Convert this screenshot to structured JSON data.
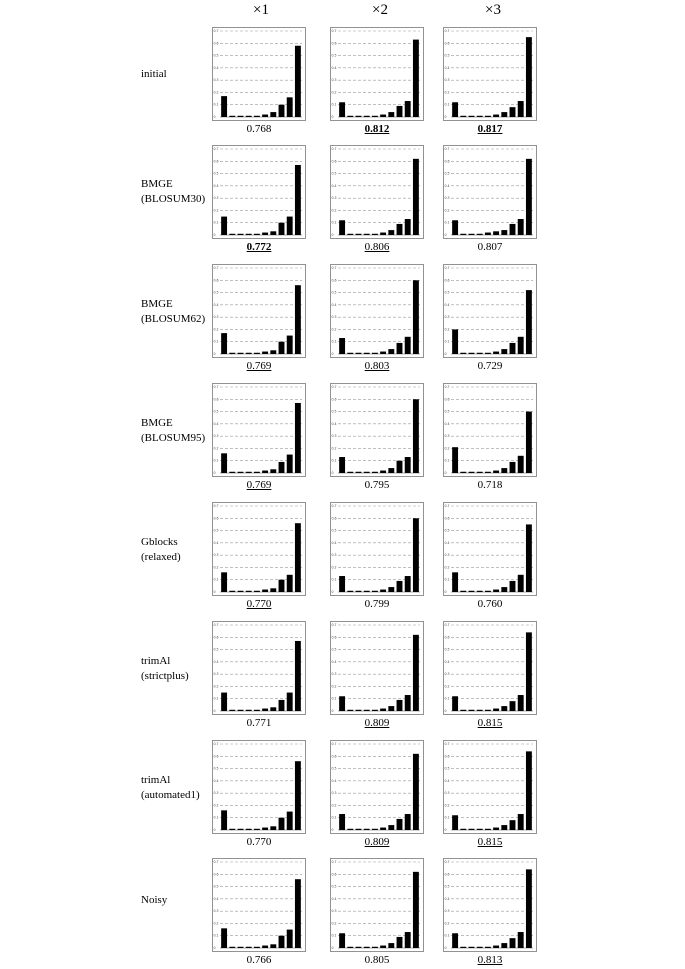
{
  "column_headers": [
    "×1",
    "×2",
    "×3"
  ],
  "row_labels": [
    "initial",
    "BMGE\n(BLOSUM30)",
    "BMGE\n(BLOSUM62)",
    "BMGE\n(BLOSUM95)",
    "Gblocks\n(relaxed)",
    "trimAl\n(strictplus)",
    "trimAl\n(automated1)",
    "Noisy"
  ],
  "axis": {
    "ylim": [
      0,
      0.7
    ],
    "ytick_labels": [
      "0",
      "0.1",
      "0.2",
      "0.3",
      "0.4",
      "0.5",
      "0.6",
      "0.7"
    ],
    "grid": "dashed horizontal"
  },
  "chart_data": [
    {
      "type": "bar",
      "row": "initial",
      "column": "×1",
      "values": [
        0.17,
        0.01,
        0.01,
        0.01,
        0.01,
        0.02,
        0.04,
        0.1,
        0.16,
        0.58
      ],
      "score": "0.768",
      "underline": false,
      "bold": false
    },
    {
      "type": "bar",
      "row": "initial",
      "column": "×2",
      "values": [
        0.12,
        0.01,
        0.01,
        0.01,
        0.01,
        0.02,
        0.04,
        0.09,
        0.13,
        0.63
      ],
      "score": "0.812",
      "underline": true,
      "bold": true
    },
    {
      "type": "bar",
      "row": "initial",
      "column": "×3",
      "values": [
        0.12,
        0.01,
        0.01,
        0.01,
        0.01,
        0.02,
        0.04,
        0.08,
        0.13,
        0.65
      ],
      "score": "0.817",
      "underline": true,
      "bold": true
    },
    {
      "type": "bar",
      "row": "BMGE (BLOSUM30)",
      "column": "×1",
      "values": [
        0.15,
        0.01,
        0.01,
        0.01,
        0.01,
        0.02,
        0.03,
        0.1,
        0.15,
        0.57
      ],
      "score": "0.772",
      "underline": true,
      "bold": true
    },
    {
      "type": "bar",
      "row": "BMGE (BLOSUM30)",
      "column": "×2",
      "values": [
        0.12,
        0.01,
        0.01,
        0.01,
        0.01,
        0.02,
        0.04,
        0.09,
        0.13,
        0.62
      ],
      "score": "0.806",
      "underline": true,
      "bold": false
    },
    {
      "type": "bar",
      "row": "BMGE (BLOSUM30)",
      "column": "×3",
      "values": [
        0.12,
        0.01,
        0.01,
        0.01,
        0.02,
        0.03,
        0.04,
        0.09,
        0.13,
        0.62
      ],
      "score": "0.807",
      "underline": false,
      "bold": false
    },
    {
      "type": "bar",
      "row": "BMGE (BLOSUM62)",
      "column": "×1",
      "values": [
        0.17,
        0.01,
        0.01,
        0.01,
        0.01,
        0.02,
        0.03,
        0.1,
        0.15,
        0.56
      ],
      "score": "0.769",
      "underline": true,
      "bold": false
    },
    {
      "type": "bar",
      "row": "BMGE (BLOSUM62)",
      "column": "×2",
      "values": [
        0.13,
        0.01,
        0.01,
        0.01,
        0.01,
        0.02,
        0.04,
        0.09,
        0.14,
        0.6
      ],
      "score": "0.803",
      "underline": true,
      "bold": false
    },
    {
      "type": "bar",
      "row": "BMGE (BLOSUM62)",
      "column": "×3",
      "values": [
        0.2,
        0.01,
        0.01,
        0.01,
        0.01,
        0.02,
        0.04,
        0.09,
        0.14,
        0.52
      ],
      "score": "0.729",
      "underline": false,
      "bold": false
    },
    {
      "type": "bar",
      "row": "BMGE (BLOSUM95)",
      "column": "×1",
      "values": [
        0.16,
        0.01,
        0.01,
        0.01,
        0.01,
        0.02,
        0.03,
        0.09,
        0.15,
        0.57
      ],
      "score": "0.769",
      "underline": true,
      "bold": false
    },
    {
      "type": "bar",
      "row": "BMGE (BLOSUM95)",
      "column": "×2",
      "values": [
        0.13,
        0.01,
        0.01,
        0.01,
        0.01,
        0.02,
        0.04,
        0.1,
        0.13,
        0.6
      ],
      "score": "0.795",
      "underline": false,
      "bold": false
    },
    {
      "type": "bar",
      "row": "BMGE (BLOSUM95)",
      "column": "×3",
      "values": [
        0.21,
        0.01,
        0.01,
        0.01,
        0.01,
        0.02,
        0.04,
        0.09,
        0.14,
        0.5
      ],
      "score": "0.718",
      "underline": false,
      "bold": false
    },
    {
      "type": "bar",
      "row": "Gblocks (relaxed)",
      "column": "×1",
      "values": [
        0.16,
        0.01,
        0.01,
        0.01,
        0.01,
        0.02,
        0.03,
        0.1,
        0.14,
        0.56
      ],
      "score": "0.770",
      "underline": true,
      "bold": false
    },
    {
      "type": "bar",
      "row": "Gblocks (relaxed)",
      "column": "×2",
      "values": [
        0.13,
        0.01,
        0.01,
        0.01,
        0.01,
        0.02,
        0.04,
        0.09,
        0.13,
        0.6
      ],
      "score": "0.799",
      "underline": false,
      "bold": false
    },
    {
      "type": "bar",
      "row": "Gblocks (relaxed)",
      "column": "×3",
      "values": [
        0.16,
        0.01,
        0.01,
        0.01,
        0.01,
        0.02,
        0.04,
        0.09,
        0.14,
        0.55
      ],
      "score": "0.760",
      "underline": false,
      "bold": false
    },
    {
      "type": "bar",
      "row": "trimAl (strictplus)",
      "column": "×1",
      "values": [
        0.15,
        0.01,
        0.01,
        0.01,
        0.01,
        0.02,
        0.03,
        0.09,
        0.15,
        0.57
      ],
      "score": "0.771",
      "underline": false,
      "bold": false
    },
    {
      "type": "bar",
      "row": "trimAl (strictplus)",
      "column": "×2",
      "values": [
        0.12,
        0.01,
        0.01,
        0.01,
        0.01,
        0.02,
        0.04,
        0.09,
        0.13,
        0.62
      ],
      "score": "0.809",
      "underline": true,
      "bold": false
    },
    {
      "type": "bar",
      "row": "trimAl (strictplus)",
      "column": "×3",
      "values": [
        0.12,
        0.01,
        0.01,
        0.01,
        0.01,
        0.02,
        0.04,
        0.08,
        0.13,
        0.64
      ],
      "score": "0.815",
      "underline": true,
      "bold": false
    },
    {
      "type": "bar",
      "row": "trimAl (automated1)",
      "column": "×1",
      "values": [
        0.16,
        0.01,
        0.01,
        0.01,
        0.01,
        0.02,
        0.03,
        0.1,
        0.15,
        0.56
      ],
      "score": "0.770",
      "underline": false,
      "bold": false
    },
    {
      "type": "bar",
      "row": "trimAl (automated1)",
      "column": "×2",
      "values": [
        0.13,
        0.01,
        0.01,
        0.01,
        0.01,
        0.02,
        0.04,
        0.09,
        0.13,
        0.62
      ],
      "score": "0.809",
      "underline": true,
      "bold": false
    },
    {
      "type": "bar",
      "row": "trimAl (automated1)",
      "column": "×3",
      "values": [
        0.12,
        0.01,
        0.01,
        0.01,
        0.01,
        0.02,
        0.04,
        0.08,
        0.13,
        0.64
      ],
      "score": "0.815",
      "underline": true,
      "bold": false
    },
    {
      "type": "bar",
      "row": "Noisy",
      "column": "×1",
      "values": [
        0.16,
        0.01,
        0.01,
        0.01,
        0.01,
        0.02,
        0.03,
        0.1,
        0.15,
        0.56
      ],
      "score": "0.766",
      "underline": false,
      "bold": false
    },
    {
      "type": "bar",
      "row": "Noisy",
      "column": "×2",
      "values": [
        0.12,
        0.01,
        0.01,
        0.01,
        0.01,
        0.02,
        0.04,
        0.09,
        0.13,
        0.62
      ],
      "score": "0.805",
      "underline": false,
      "bold": false
    },
    {
      "type": "bar",
      "row": "Noisy",
      "column": "×3",
      "values": [
        0.12,
        0.01,
        0.01,
        0.01,
        0.01,
        0.02,
        0.04,
        0.08,
        0.13,
        0.64
      ],
      "score": "0.813",
      "underline": true,
      "bold": false
    }
  ]
}
